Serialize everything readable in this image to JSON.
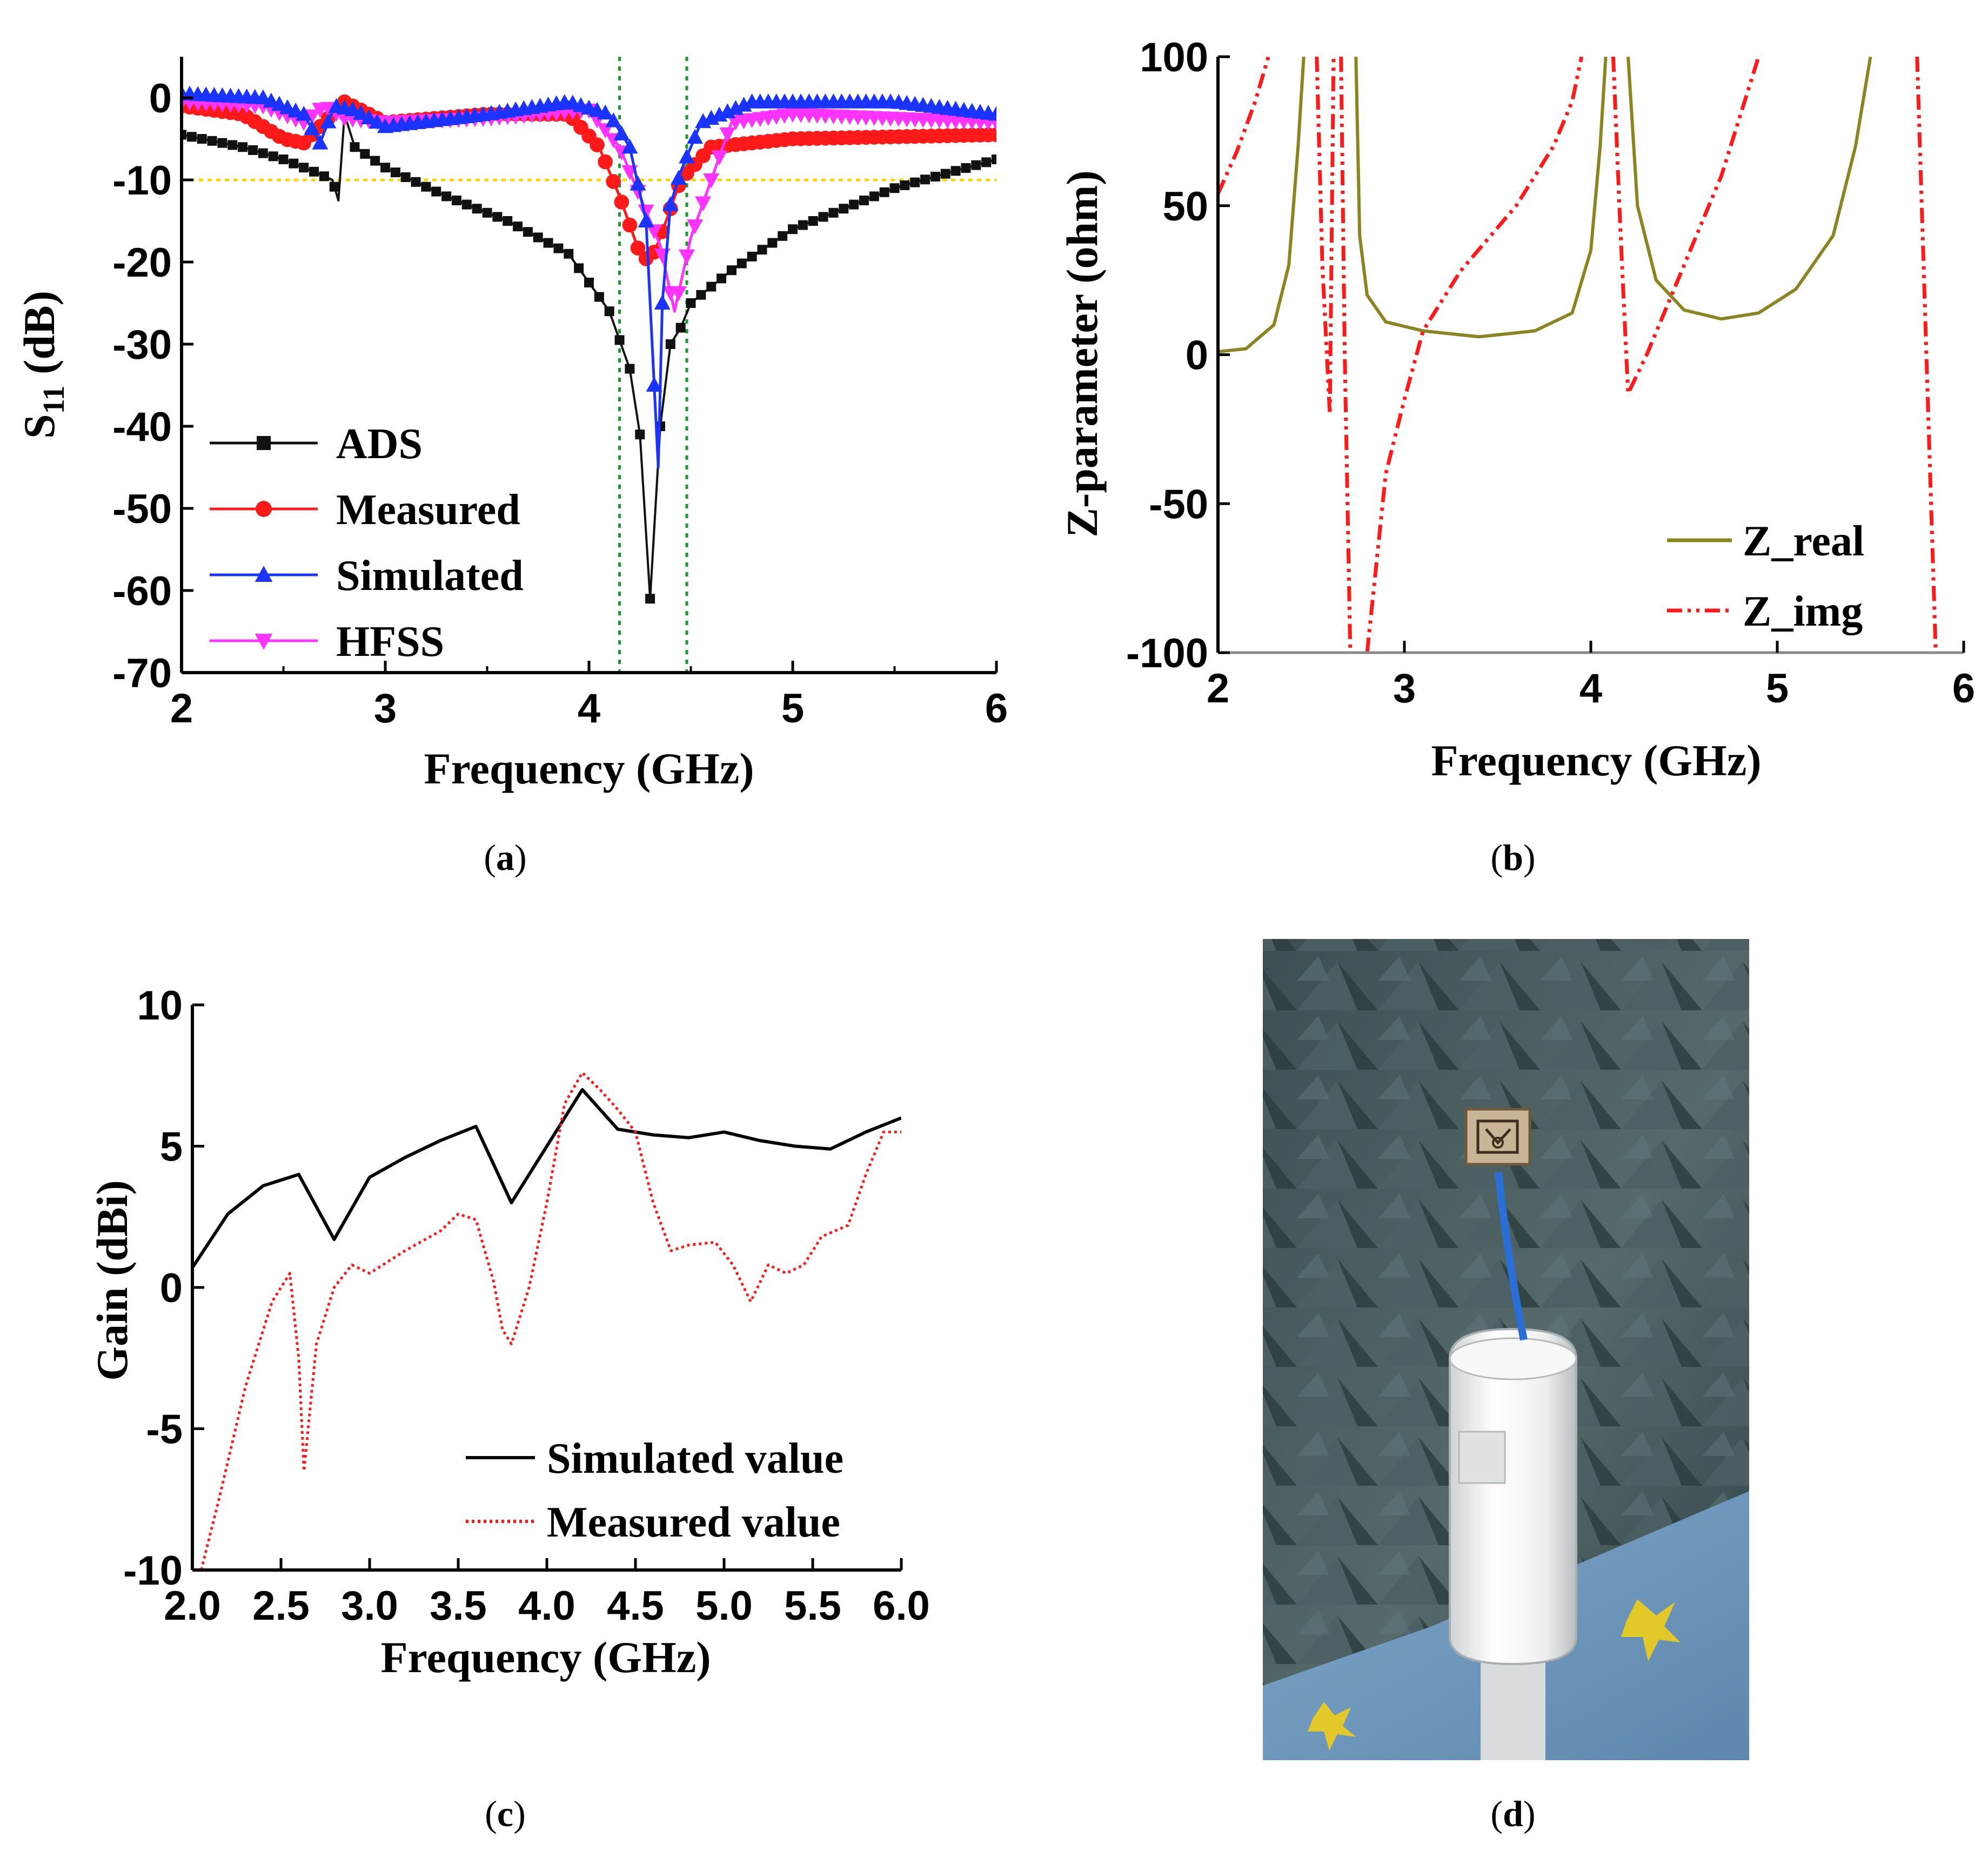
{
  "colors": {
    "ads": "#111111",
    "measured": "#ff1a1a",
    "simulated": "#1a33ff",
    "hfss": "#ff33ff",
    "z_real": "#8c8420",
    "z_img": "#ff1a1a",
    "ref_line": "#ffd400",
    "band_line": "#1a9a2a",
    "gain_sim": "#000000",
    "gain_meas": "#ff1a1a"
  },
  "panels": {
    "a": {
      "caption_letter": "a"
    },
    "b": {
      "caption_letter": "b"
    },
    "c": {
      "caption_letter": "c"
    },
    "d": {
      "caption_letter": "d",
      "photo_icon": "antenna-in-anechoic-chamber-photo"
    }
  },
  "chart_data": [
    {
      "id": "a",
      "type": "line",
      "xlabel": "Frequency (GHz)",
      "ylabel": "S11 (dB)",
      "ylabel_main": "S",
      "ylabel_sub": "11",
      "ylabel_unit": " (dB)",
      "xlim": [
        2,
        6
      ],
      "ylim": [
        -70,
        5
      ],
      "xticks": [
        2,
        3,
        4,
        5,
        6
      ],
      "yticks": [
        0,
        -10,
        -20,
        -30,
        -40,
        -50,
        -60,
        -70
      ],
      "reference_lines": {
        "horizontal_dB": -10,
        "vertical_GHz": [
          4.15,
          4.48
        ]
      },
      "legend": [
        "ADS",
        "Measured",
        "Simulated",
        "HFSS"
      ],
      "series": [
        {
          "name": "ADS",
          "marker": "square",
          "x": [
            2.0,
            2.3,
            2.5,
            2.65,
            2.74,
            2.77,
            2.8,
            2.85,
            3.0,
            3.3,
            3.6,
            3.9,
            4.1,
            4.2,
            4.25,
            4.3,
            4.35,
            4.4,
            4.45,
            4.5,
            4.7,
            5.0,
            5.5,
            6.0
          ],
          "y": [
            -4.5,
            -6,
            -7.5,
            -9,
            -10,
            -12.5,
            -2,
            -6,
            -8.5,
            -12,
            -15,
            -19,
            -26,
            -33,
            -41,
            -61,
            -40,
            -30,
            -28,
            -25,
            -21,
            -16,
            -11,
            -7.5
          ]
        },
        {
          "name": "Measured",
          "marker": "circle",
          "x": [
            2.0,
            2.3,
            2.5,
            2.6,
            2.7,
            2.8,
            3.0,
            3.5,
            3.9,
            4.05,
            4.15,
            4.25,
            4.3,
            4.35,
            4.45,
            4.6,
            5.0,
            6.0
          ],
          "y": [
            -1,
            -2,
            -5,
            -5.5,
            -3,
            -0.5,
            -3,
            -2,
            -2,
            -6,
            -12,
            -19,
            -20,
            -17,
            -10,
            -6,
            -5,
            -4.5
          ]
        },
        {
          "name": "Simulated",
          "marker": "triangle-up",
          "x": [
            2.0,
            2.4,
            2.6,
            2.68,
            2.75,
            2.85,
            3.0,
            3.5,
            3.9,
            4.1,
            4.2,
            4.28,
            4.34,
            4.36,
            4.4,
            4.45,
            4.55,
            4.8,
            5.5,
            6.0
          ],
          "y": [
            0.5,
            0,
            -2,
            -5.5,
            -1,
            -1.5,
            -3.5,
            -2,
            -0.5,
            -2,
            -6,
            -15,
            -45,
            -25,
            -13,
            -9,
            -3,
            -0.5,
            -0.5,
            -2
          ]
        },
        {
          "name": "HFSS",
          "marker": "triangle-down",
          "x": [
            2.0,
            2.4,
            2.6,
            2.7,
            2.8,
            3.0,
            3.5,
            4.0,
            4.15,
            4.25,
            4.35,
            4.42,
            4.5,
            4.6,
            4.7,
            5.0,
            6.0
          ],
          "y": [
            -0.5,
            -1,
            -3,
            -1,
            -2.5,
            -3,
            -2.5,
            -1.5,
            -6,
            -12,
            -18,
            -26,
            -17,
            -10,
            -3,
            -2,
            -3
          ]
        }
      ]
    },
    {
      "id": "b",
      "type": "line",
      "xlabel": "Frequency (GHz)",
      "ylabel": "Z-parameter (ohm)",
      "xlim": [
        2,
        6
      ],
      "ylim": [
        -100,
        100
      ],
      "xticks": [
        2,
        3,
        4,
        5,
        6
      ],
      "yticks": [
        100,
        50,
        0,
        -50,
        -100
      ],
      "legend": [
        "Z_real",
        "Z_img"
      ],
      "series": [
        {
          "name": "Z_real",
          "style": "solid",
          "segments": [
            {
              "x": [
                2.0,
                2.15,
                2.3,
                2.38,
                2.43,
                2.46
              ],
              "y": [
                1,
                2,
                10,
                30,
                70,
                100
              ]
            },
            {
              "x": [
                2.74,
                2.76,
                2.8,
                2.9,
                3.1,
                3.4,
                3.7,
                3.9,
                4.0,
                4.05,
                4.08
              ],
              "y": [
                100,
                40,
                20,
                11,
                8,
                6,
                8,
                14,
                35,
                70,
                100
              ]
            },
            {
              "x": [
                4.2,
                4.25,
                4.35,
                4.5,
                4.7,
                4.9,
                5.1,
                5.3,
                5.42,
                5.5
              ],
              "y": [
                100,
                50,
                25,
                15,
                12,
                14,
                22,
                40,
                70,
                100
              ]
            }
          ]
        },
        {
          "name": "Z_img",
          "style": "dash-dot",
          "segments": [
            {
              "x": [
                2.0,
                2.1,
                2.2,
                2.27
              ],
              "y": [
                54,
                68,
                85,
                100
              ]
            },
            {
              "x": [
                2.53,
                2.56,
                2.6,
                2.62
              ],
              "y": [
                100,
                30,
                -20,
                100
              ]
            },
            {
              "x": [
                2.66,
                2.68,
                2.71
              ],
              "y": [
                100,
                0,
                -100
              ]
            },
            {
              "x": [
                2.8,
                2.85,
                2.9,
                3.0,
                3.1,
                3.3,
                3.6,
                3.8,
                3.9,
                3.95
              ],
              "y": [
                -100,
                -70,
                -40,
                -15,
                8,
                28,
                50,
                70,
                85,
                100
              ]
            },
            {
              "x": [
                4.12,
                4.16,
                4.2,
                4.3,
                4.5,
                4.7,
                4.9
              ],
              "y": [
                100,
                40,
                -13,
                0,
                30,
                60,
                100
              ]
            },
            {
              "x": [
                5.75,
                5.8,
                5.85
              ],
              "y": [
                100,
                0,
                -100
              ]
            }
          ]
        }
      ]
    },
    {
      "id": "c",
      "type": "line",
      "xlabel": "Frequency (GHz)",
      "ylabel": "Gain (dBi)",
      "xlim": [
        2.0,
        6.0
      ],
      "ylim": [
        -10,
        10
      ],
      "xticks": [
        "2.0",
        "2.5",
        "3.0",
        "3.5",
        "4.0",
        "4.5",
        "5.0",
        "5.5",
        "6.0"
      ],
      "yticks": [
        "10",
        "5",
        "0",
        "-5",
        "-10"
      ],
      "legend": [
        "Simulated value",
        "Measured value"
      ],
      "series": [
        {
          "name": "Simulated value",
          "style": "solid",
          "x": [
            2.0,
            2.2,
            2.4,
            2.6,
            2.8,
            3.0,
            3.2,
            3.4,
            3.6,
            3.8,
            4.0,
            4.2,
            4.4,
            4.6,
            4.8,
            5.0,
            5.2,
            5.4,
            5.6,
            5.8,
            6.0
          ],
          "y": [
            0.7,
            2.6,
            3.6,
            4.0,
            1.7,
            3.9,
            4.6,
            5.2,
            5.7,
            3.0,
            5.0,
            7.0,
            5.6,
            5.4,
            5.3,
            5.5,
            5.2,
            5.0,
            4.9,
            5.5,
            6.0
          ]
        },
        {
          "name": "Measured value",
          "style": "dotted",
          "x": [
            2.05,
            2.15,
            2.3,
            2.45,
            2.55,
            2.6,
            2.63,
            2.7,
            2.8,
            2.9,
            3.0,
            3.2,
            3.4,
            3.5,
            3.6,
            3.7,
            3.75,
            3.8,
            3.9,
            4.0,
            4.1,
            4.2,
            4.3,
            4.4,
            4.5,
            4.6,
            4.7,
            4.8,
            4.95,
            5.05,
            5.15,
            5.25,
            5.35,
            5.45,
            5.55,
            5.7,
            5.8,
            5.9,
            6.0
          ],
          "y": [
            -10,
            -7.5,
            -3.5,
            -0.5,
            0.5,
            -2.5,
            -6.5,
            -2,
            0,
            0.8,
            0.5,
            1.3,
            2.0,
            2.6,
            2.4,
            0.2,
            -1.5,
            -2,
            0,
            3,
            6.5,
            7.6,
            7.0,
            6.3,
            5.5,
            3.0,
            1.3,
            1.5,
            1.6,
            0.8,
            -0.5,
            0.8,
            0.5,
            0.8,
            1.8,
            2.2,
            4.0,
            5.5,
            5.5
          ]
        }
      ]
    }
  ]
}
